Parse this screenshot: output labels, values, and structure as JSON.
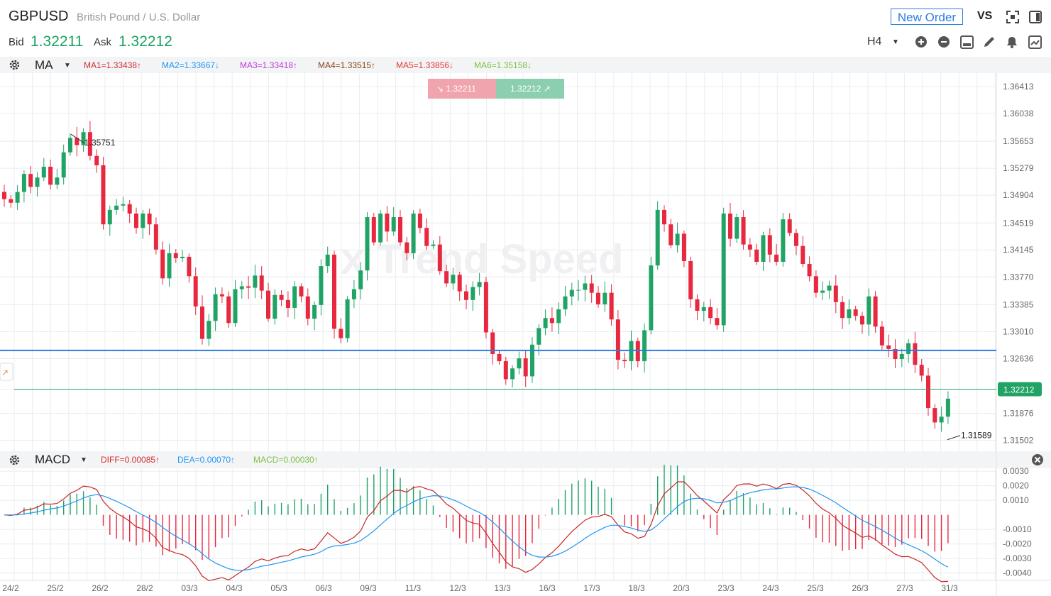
{
  "header": {
    "symbol": "GBPUSD",
    "name": "British Pound / U.S. Dollar",
    "bid_label": "Bid",
    "bid_value": "1.32211",
    "ask_label": "Ask",
    "ask_value": "1.32212",
    "new_order_label": "New Order",
    "vs_label": "VS",
    "timeframe": "H4"
  },
  "ma_bar": {
    "name": "MA",
    "items": [
      {
        "label": "MA1=1.33438↑",
        "color": "#d32f2f"
      },
      {
        "label": "MA2=1.33667↓",
        "color": "#2196f3"
      },
      {
        "label": "MA3=1.33418↑",
        "color": "#c33ad8"
      },
      {
        "label": "MA4=1.33515↑",
        "color": "#8b4513"
      },
      {
        "label": "MA5=1.33856↓",
        "color": "#e53935"
      },
      {
        "label": "MA6=1.35158↓",
        "color": "#7cc242"
      }
    ]
  },
  "macd_bar": {
    "name": "MACD",
    "items": [
      {
        "label": "DIFF=0.00085↑",
        "color": "#d32f2f"
      },
      {
        "label": "DEA=0.00070↑",
        "color": "#2196f3"
      },
      {
        "label": "MACD=0.00030↑",
        "color": "#7cc242"
      }
    ]
  },
  "quote_box": {
    "sell": "1.32211",
    "buy": "1.32212"
  },
  "watermark": "Trend Speed",
  "chart_data": [
    {
      "type": "candlestick",
      "title": "GBPUSD H4",
      "ylim": [
        1.3135,
        1.366
      ],
      "y_ticks": [
        "1.36413",
        "1.36038",
        "1.35653",
        "1.35279",
        "1.34904",
        "1.34519",
        "1.34145",
        "1.33770",
        "1.33385",
        "1.33010",
        "1.32636",
        "1.32212",
        "1.31876",
        "1.31502"
      ],
      "x_ticks": [
        "24/2",
        "25/2",
        "26/2",
        "28/2",
        "03/3",
        "04/3",
        "05/3",
        "06/3",
        "09/3",
        "11/3",
        "12/3",
        "13/3",
        "16/3",
        "17/3",
        "18/3",
        "20/3",
        "23/3",
        "24/3",
        "25/3",
        "26/3",
        "27/3",
        "31/3"
      ],
      "current_price": "1.32212",
      "horizontal_line": 1.3275,
      "annotations": [
        {
          "text": "1.35751",
          "value": 1.35751
        },
        {
          "text": "1.31589",
          "value": 1.31589
        }
      ],
      "closes": [
        1.3485,
        1.348,
        1.3495,
        1.352,
        1.3502,
        1.3515,
        1.353,
        1.3505,
        1.3515,
        1.355,
        1.357,
        1.356,
        1.3578,
        1.3545,
        1.3532,
        1.345,
        1.347,
        1.3476,
        1.3478,
        1.3465,
        1.3445,
        1.3465,
        1.345,
        1.3415,
        1.3375,
        1.341,
        1.3403,
        1.3405,
        1.3378,
        1.3336,
        1.3291,
        1.3316,
        1.3353,
        1.335,
        1.3313,
        1.336,
        1.3364,
        1.3362,
        1.3379,
        1.3358,
        1.3319,
        1.3352,
        1.3345,
        1.3334,
        1.3364,
        1.335,
        1.3319,
        1.3338,
        1.3392,
        1.3408,
        1.3305,
        1.3292,
        1.3346,
        1.336,
        1.3386,
        1.346,
        1.3425,
        1.3465,
        1.344,
        1.346,
        1.3425,
        1.341,
        1.3465,
        1.3445,
        1.342,
        1.3422,
        1.3385,
        1.3368,
        1.338,
        1.3357,
        1.3345,
        1.3363,
        1.337,
        1.33,
        1.327,
        1.326,
        1.3235,
        1.325,
        1.3264,
        1.3239,
        1.3283,
        1.3306,
        1.332,
        1.3313,
        1.3332,
        1.335,
        1.3359,
        1.3359,
        1.3368,
        1.3355,
        1.3339,
        1.3355,
        1.3318,
        1.3262,
        1.326,
        1.3288,
        1.326,
        1.3303,
        1.3393,
        1.347,
        1.345,
        1.3421,
        1.3437,
        1.3399,
        1.3346,
        1.333,
        1.3335,
        1.332,
        1.331,
        1.3465,
        1.343,
        1.346,
        1.3422,
        1.3415,
        1.3398,
        1.3435,
        1.3408,
        1.3398,
        1.3457,
        1.3438,
        1.342,
        1.3395,
        1.3378,
        1.3355,
        1.3358,
        1.3365,
        1.3342,
        1.332,
        1.3332,
        1.3323,
        1.3311,
        1.335,
        1.3308,
        1.3282,
        1.3277,
        1.3263,
        1.327,
        1.3285,
        1.3255,
        1.324,
        1.3195,
        1.3175,
        1.3183,
        1.3208
      ]
    },
    {
      "type": "bar",
      "title": "MACD",
      "ylim": [
        -0.0045,
        0.0032
      ],
      "y_ticks": [
        "0.0030",
        "0.0020",
        "0.0010",
        "-0.0010",
        "-0.0020",
        "-0.0030",
        "-0.0040"
      ],
      "series": [
        {
          "name": "DIFF",
          "color": "#c62828"
        },
        {
          "name": "DEA",
          "color": "#2196f3"
        },
        {
          "name": "MACD",
          "color": "#21a366"
        }
      ]
    }
  ],
  "colors": {
    "up": "#21a366",
    "down": "#e8283f",
    "accent": "#2d7de0",
    "grid": "#e9ecef",
    "price_label_bg": "#21a366"
  }
}
